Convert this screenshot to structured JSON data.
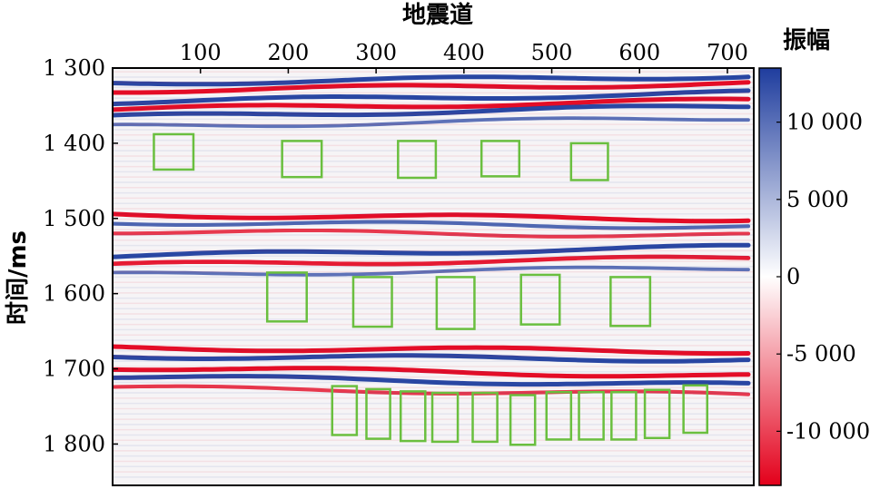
{
  "chart_data": {
    "type": "heatmap",
    "title": "",
    "xlabel": "地震道",
    "ylabel": "时间/ms",
    "xlim": [
      0,
      730
    ],
    "ylim": [
      1300,
      1855
    ],
    "y_reversed": true,
    "xticks": [
      100,
      200,
      300,
      400,
      500,
      600,
      700
    ],
    "xtick_labels": [
      "100",
      "200",
      "300",
      "400",
      "500",
      "600",
      "700"
    ],
    "yticks": [
      1300,
      1400,
      1500,
      1600,
      1700,
      1800
    ],
    "ytick_labels": [
      "1 300",
      "1 400",
      "1 500",
      "1 600",
      "1 700",
      "1 800"
    ],
    "colorbar": {
      "label": "振幅",
      "range": [
        -13500,
        13500
      ],
      "ticks": [
        10000,
        5000,
        0,
        -5000,
        -10000
      ],
      "tick_labels": [
        "10 000",
        "5 000",
        "0",
        "-5 000",
        "-10 000"
      ],
      "colormap": [
        "#e3001b",
        "#ffffff",
        "#1f3d9e"
      ]
    },
    "reflectors": [
      {
        "t": 1320,
        "amp": 1,
        "tilt": 8
      },
      {
        "t": 1330,
        "amp": -1,
        "tilt": 8
      },
      {
        "t": 1345,
        "amp": 1,
        "tilt": 10
      },
      {
        "t": 1355,
        "amp": -1,
        "tilt": 10
      },
      {
        "t": 1365,
        "amp": 1,
        "tilt": 12
      },
      {
        "t": 1378,
        "amp": 0.6,
        "tilt": 10
      },
      {
        "t": 1495,
        "amp": -1,
        "tilt": -5
      },
      {
        "t": 1505,
        "amp": 0.7,
        "tilt": -5
      },
      {
        "t": 1517,
        "amp": -0.7,
        "tilt": -5
      },
      {
        "t": 1550,
        "amp": 1,
        "tilt": 10
      },
      {
        "t": 1562,
        "amp": -0.9,
        "tilt": 8
      },
      {
        "t": 1575,
        "amp": 0.6,
        "tilt": 8
      },
      {
        "t": 1672,
        "amp": -1,
        "tilt": -4
      },
      {
        "t": 1683,
        "amp": 1,
        "tilt": -4
      },
      {
        "t": 1698,
        "amp": -1,
        "tilt": -10
      },
      {
        "t": 1710,
        "amp": 1,
        "tilt": -10
      },
      {
        "t": 1725,
        "amp": -0.7,
        "tilt": -8
      }
    ],
    "annotation_boxes": [
      {
        "x": [
          47,
          92
        ],
        "t": [
          1388,
          1435
        ]
      },
      {
        "x": [
          193,
          238
        ],
        "t": [
          1397,
          1445
        ]
      },
      {
        "x": [
          325,
          368
        ],
        "t": [
          1397,
          1446
        ]
      },
      {
        "x": [
          420,
          463
        ],
        "t": [
          1397,
          1444
        ]
      },
      {
        "x": [
          522,
          564
        ],
        "t": [
          1400,
          1449
        ]
      },
      {
        "x": [
          176,
          221
        ],
        "t": [
          1572,
          1637
        ]
      },
      {
        "x": [
          274,
          318
        ],
        "t": [
          1578,
          1644
        ]
      },
      {
        "x": [
          369,
          412
        ],
        "t": [
          1578,
          1647
        ]
      },
      {
        "x": [
          465,
          509
        ],
        "t": [
          1575,
          1641
        ]
      },
      {
        "x": [
          567,
          612
        ],
        "t": [
          1578,
          1643
        ]
      },
      {
        "x": [
          250,
          278
        ],
        "t": [
          1723,
          1788
        ]
      },
      {
        "x": [
          289,
          316
        ],
        "t": [
          1727,
          1793
        ]
      },
      {
        "x": [
          328,
          356
        ],
        "t": [
          1730,
          1796
        ]
      },
      {
        "x": [
          364,
          393
        ],
        "t": [
          1732,
          1797
        ]
      },
      {
        "x": [
          410,
          438
        ],
        "t": [
          1732,
          1797
        ]
      },
      {
        "x": [
          453,
          481
        ],
        "t": [
          1735,
          1801
        ]
      },
      {
        "x": [
          494,
          522
        ],
        "t": [
          1731,
          1794
        ]
      },
      {
        "x": [
          531,
          559
        ],
        "t": [
          1731,
          1794
        ]
      },
      {
        "x": [
          568,
          596
        ],
        "t": [
          1731,
          1794
        ]
      },
      {
        "x": [
          606,
          634
        ],
        "t": [
          1728,
          1792
        ]
      },
      {
        "x": [
          650,
          677
        ],
        "t": [
          1722,
          1785
        ]
      }
    ],
    "box_color": "#6abf3f",
    "grid": false
  }
}
